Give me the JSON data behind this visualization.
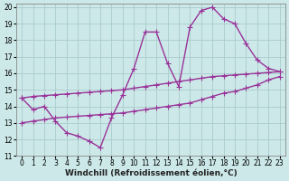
{
  "bg_color": "#cce8e8",
  "grid_color": "#aacccc",
  "line_color": "#993399",
  "markersize": 3,
  "linewidth": 1.0,
  "xlabel": "Windchill (Refroidissement éolien,°C)",
  "xlabel_fontsize": 6.5,
  "tick_fontsize": 5.5,
  "xlim": [
    -0.5,
    23.5
  ],
  "ylim": [
    11,
    20.2
  ],
  "yticks": [
    11,
    12,
    13,
    14,
    15,
    16,
    17,
    18,
    19,
    20
  ],
  "xticks": [
    0,
    1,
    2,
    3,
    4,
    5,
    6,
    7,
    8,
    9,
    10,
    11,
    12,
    13,
    14,
    15,
    16,
    17,
    18,
    19,
    20,
    21,
    22,
    23
  ],
  "line1_x": [
    0,
    1,
    2,
    3,
    4,
    5,
    6,
    7,
    8,
    9,
    10,
    11,
    12,
    13,
    14,
    15,
    16,
    17,
    18,
    19,
    20,
    21,
    22,
    23
  ],
  "line1_y": [
    14.5,
    13.8,
    14.0,
    13.1,
    12.4,
    12.2,
    11.9,
    11.5,
    13.3,
    14.7,
    16.3,
    18.5,
    18.5,
    16.6,
    15.2,
    18.8,
    19.8,
    20.0,
    19.3,
    19.0,
    17.8,
    16.8,
    16.3,
    16.1
  ],
  "line2_x": [
    0,
    1,
    2,
    3,
    4,
    5,
    6,
    7,
    8,
    9,
    10,
    11,
    12,
    13,
    14,
    15,
    16,
    17,
    18,
    19,
    20,
    21,
    22,
    23
  ],
  "line2_y": [
    14.5,
    14.6,
    14.65,
    14.7,
    14.75,
    14.8,
    14.85,
    14.9,
    14.95,
    15.0,
    15.1,
    15.2,
    15.3,
    15.4,
    15.5,
    15.6,
    15.7,
    15.8,
    15.85,
    15.9,
    15.95,
    16.0,
    16.05,
    16.1
  ],
  "line3_x": [
    0,
    1,
    2,
    3,
    4,
    5,
    6,
    7,
    8,
    9,
    10,
    11,
    12,
    13,
    14,
    15,
    16,
    17,
    18,
    19,
    20,
    21,
    22,
    23
  ],
  "line3_y": [
    13.0,
    13.1,
    13.2,
    13.3,
    13.35,
    13.4,
    13.45,
    13.5,
    13.55,
    13.6,
    13.7,
    13.8,
    13.9,
    14.0,
    14.1,
    14.2,
    14.4,
    14.6,
    14.8,
    14.9,
    15.1,
    15.3,
    15.6,
    15.8
  ]
}
